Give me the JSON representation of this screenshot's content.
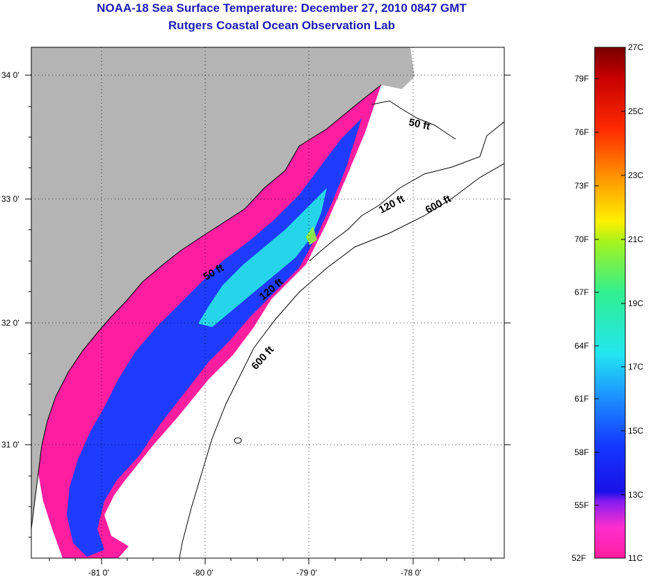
{
  "title": "NOAA-18 Sea Surface Temperature:  December 27, 2010 0847 GMT",
  "subtitle": "Rutgers Coastal Ocean Observation Lab",
  "lat_ticks": [
    "34 0'",
    "33 0'",
    "32 0'",
    "31 0'"
  ],
  "lon_ticks": [
    "-81 0'",
    "-80 0'",
    "-79 0'",
    "-78 0'"
  ],
  "contours": {
    "c50_north": "50 ft",
    "c120_north": "120 ft",
    "c600_north": "600 ft",
    "c50_mid": "50 ft",
    "c120_mid": "120 ft",
    "c600_south": "600 ft"
  },
  "colorbar": {
    "fahrenheit": [
      "79F",
      "76F",
      "73F",
      "70F",
      "67F",
      "64F",
      "61F",
      "58F",
      "55F",
      "52F"
    ],
    "celsius": [
      "27C",
      "25C",
      "23C",
      "21C",
      "19C",
      "17C",
      "15C",
      "13C",
      "11C"
    ]
  },
  "colors": {
    "land": "#b4b4b4",
    "title": "#1a1ab4",
    "sst_cold": "#ff1ea0",
    "sst_mid": "#1e3cff",
    "sst_warm": "#28f0e6"
  }
}
